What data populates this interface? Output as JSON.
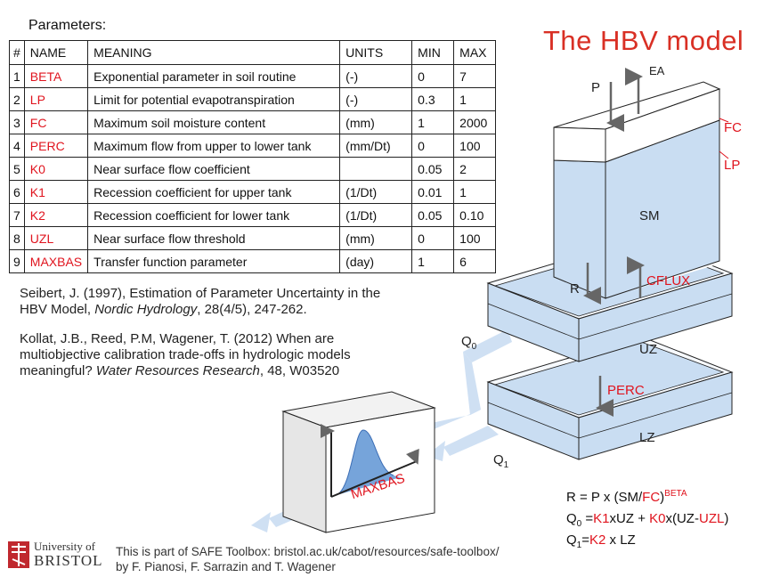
{
  "params_heading": "Parameters:",
  "table": {
    "headers": [
      "#",
      "NAME",
      "MEANING",
      "UNITS",
      "MIN",
      "MAX"
    ],
    "rows": [
      [
        "1",
        "BETA",
        "Exponential parameter in soil routine",
        "(-)",
        "0",
        "7"
      ],
      [
        "2",
        "LP",
        "Limit for potential evapotranspiration",
        "(-)",
        "0.3",
        "1"
      ],
      [
        "3",
        "FC",
        "Maximum soil moisture content",
        "(mm)",
        "1",
        "2000"
      ],
      [
        "4",
        "PERC",
        "Maximum flow from upper to lower tank",
        "(mm/Dt)",
        "0",
        "100"
      ],
      [
        "5",
        "K0",
        "Near surface flow coefficient",
        "",
        "0.05",
        "2"
      ],
      [
        "6",
        "K1",
        "Recession coefficient for upper tank",
        "(1/Dt)",
        "0.01",
        "1"
      ],
      [
        "7",
        "K2",
        "Recession coefficient for lower tank",
        "(1/Dt)",
        "0.05",
        "0.10"
      ],
      [
        "8",
        "UZL",
        "Near surface flow threshold",
        "(mm)",
        "0",
        "100"
      ],
      [
        "9",
        "MAXBAS",
        "Transfer function parameter",
        "(day)",
        "1",
        "6"
      ]
    ]
  },
  "references": {
    "ref1_text": "Seibert, J. (1997), Estimation of Parameter Uncertainty in the HBV Model, ",
    "ref1_journal": "Nordic Hydrology",
    "ref1_tail": ", 28(4/5), 247-262.",
    "ref2_text": "Kollat, J.B., Reed, P.M, Wagener, T. (2012) When are multiobjective calibration trade-offs in hydrologic models meaningful? ",
    "ref2_journal": "Water Resources Research",
    "ref2_tail": ", 48, W03520"
  },
  "title": "The HBV model",
  "diagram": {
    "p": "P",
    "ea": "EA",
    "fc": "FC",
    "lp": "LP",
    "sm": "SM",
    "r": "R",
    "cflux": "CFLUX",
    "uz": "UZ",
    "perc": "PERC",
    "lz": "LZ",
    "q0_main": "Q",
    "q0_sub": "0",
    "q1_main": "Q",
    "q1_sub": "1",
    "maxbas": "MAXBAS"
  },
  "equations": {
    "eq1_a": "R = P x (SM/",
    "eq1_fc": "FC",
    "eq1_b": ")",
    "eq1_beta": "BETA",
    "eq2_q": "Q",
    "eq2_sub": "0",
    "eq2_a": " =",
    "eq2_k1": "K1",
    "eq2_b": "xUZ + ",
    "eq2_k0": "K0",
    "eq2_c": "x(UZ-",
    "eq2_uzl": "UZL",
    "eq2_d": ")",
    "eq3_q": "Q",
    "eq3_sub": "1",
    "eq3_a": "=",
    "eq3_k2": "K2",
    "eq3_b": " x LZ"
  },
  "footer": {
    "line1": "This is part of SAFE Toolbox: bristol.ac.uk/cabot/resources/safe-toolbox/",
    "line2": "by F. Pianosi, F. Sarrazin and T. Wagener",
    "logo_line1": "University of",
    "logo_line2": "BRISTOL"
  },
  "colors": {
    "accent_red": "#e0141e",
    "title_red": "#d93025",
    "water_blue": "#c9ddf2",
    "flow_blue": "#cfe0f3",
    "curve_blue": "#6f9fd8"
  }
}
